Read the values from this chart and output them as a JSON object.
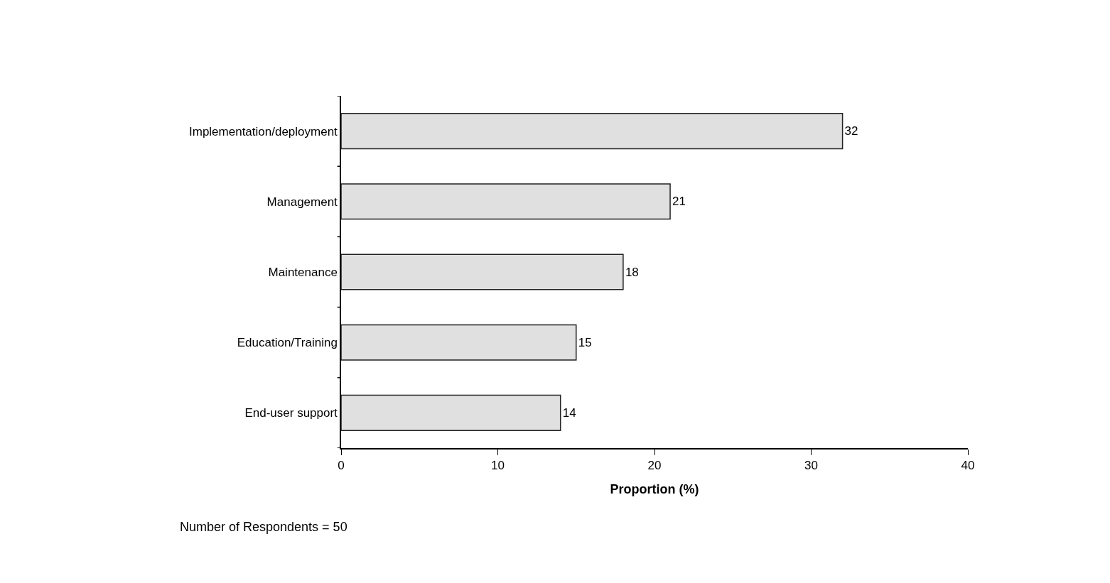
{
  "chart_data": {
    "type": "bar",
    "orientation": "horizontal",
    "categories": [
      "Implementation/deployment",
      "Management",
      "Maintenance",
      "Education/Training",
      "End-user support"
    ],
    "values": [
      32,
      21,
      18,
      15,
      14
    ],
    "color": "#e0e0e0",
    "xlabel": "Proportion (%)",
    "xlim": [
      0,
      40
    ],
    "xticks": [
      0,
      10,
      20,
      30,
      40
    ],
    "data_labels": true,
    "annotations": [
      "Number of Respondents = 50"
    ]
  }
}
